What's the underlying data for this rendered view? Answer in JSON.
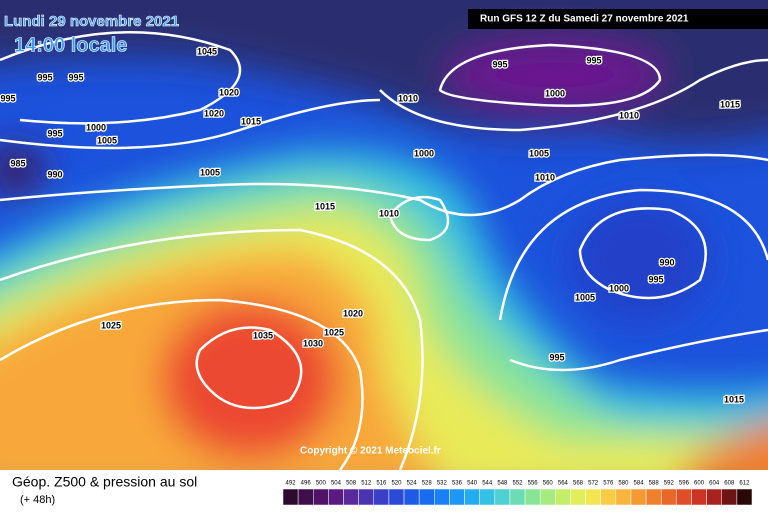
{
  "header": {
    "date": "Lundi 29 novembre 2021",
    "time": "14:00 locale",
    "run": "Run GFS 12 Z du Samedi 27 novembre 2021"
  },
  "map": {
    "isobar_labels": [
      1045,
      995,
      995,
      995,
      1020,
      1020,
      1015,
      1000,
      995,
      1005,
      985,
      990,
      1005,
      995,
      995,
      1000,
      1010,
      1010,
      1015,
      1000,
      1005,
      1010,
      1015,
      1010,
      990,
      995,
      1000,
      1005,
      1020,
      1025,
      1035,
      1025,
      1030,
      995,
      1015
    ],
    "copyright": "Copyright © 2021 Meteociel.fr"
  },
  "footer": {
    "title": "Géop. Z500 & pression au sol",
    "lead": "(+ 48h)"
  },
  "legend": {
    "values": [
      492,
      496,
      500,
      504,
      508,
      512,
      516,
      520,
      524,
      528,
      532,
      536,
      540,
      544,
      548,
      552,
      556,
      560,
      564,
      568,
      572,
      576,
      580,
      584,
      588,
      592,
      596,
      600,
      604,
      608,
      612
    ],
    "colors": [
      "#2d0a2e",
      "#3e0f4a",
      "#501466",
      "#5a1a80",
      "#5b2a9a",
      "#4a34b0",
      "#3a3fc8",
      "#2b4ad8",
      "#1f5ae6",
      "#1a6cef",
      "#1a80f5",
      "#1e96f5",
      "#25acf0",
      "#35c0e6",
      "#50d0d0",
      "#6cdcb4",
      "#8ae498",
      "#a6ea80",
      "#c4ee6a",
      "#e0ee5a",
      "#f4e450",
      "#f8cc44",
      "#f8b43c",
      "#f49a34",
      "#f0802e",
      "#e8682a",
      "#e04e28",
      "#cc3424",
      "#a82220",
      "#6e1414",
      "#2a0808"
    ]
  }
}
